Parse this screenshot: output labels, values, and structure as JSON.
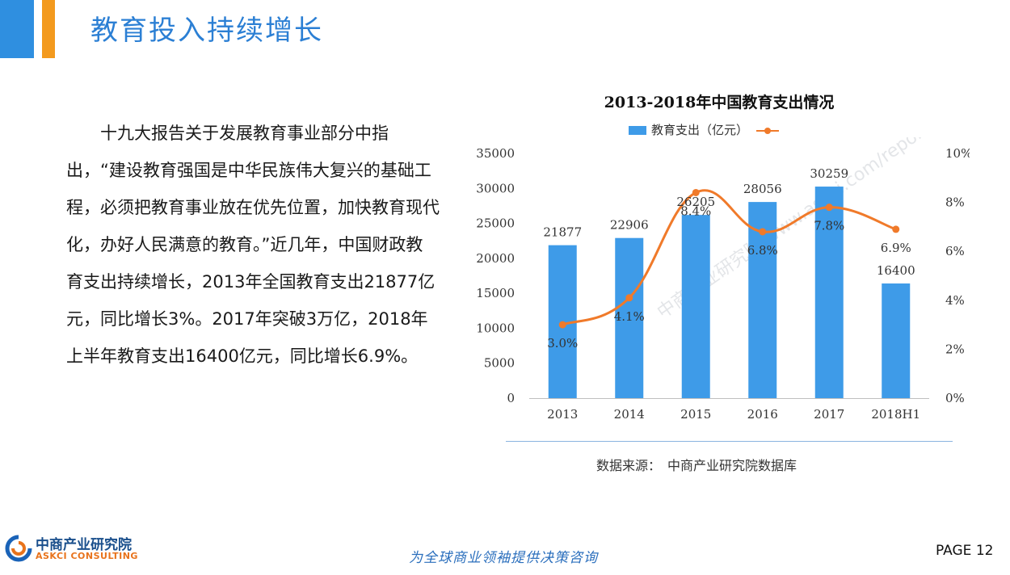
{
  "header": {
    "title": "教育投入持续增长"
  },
  "body": {
    "paragraph": "　　十九大报告关于发展教育事业部分中指出，“建设教育强国是中华民族伟大复兴的基础工程，必须把教育事业放在优先位置，加快教育现代化，办好人民满意的教育。”近几年，中国财政教育支出持续增长，2013年全国教育支出21877亿元，同比增长3%。2017年突破3万亿，2018年上半年教育支出16400亿元，同比增长6.9%。"
  },
  "chart_data": {
    "type": "bar",
    "title": "2013-2018年中国教育支出情况",
    "categories": [
      "2013",
      "2014",
      "2015",
      "2016",
      "2017",
      "2018H1"
    ],
    "series": [
      {
        "name": "教育支出（亿元）",
        "type": "bar",
        "axis": "left",
        "color": "#3e9be8",
        "values": [
          21877,
          22906,
          26205,
          28056,
          30259,
          16400
        ],
        "labels": [
          "21877",
          "22906",
          "26205",
          "28056",
          "30259",
          "16400"
        ]
      },
      {
        "name": "",
        "type": "line",
        "axis": "right",
        "color": "#f07a2a",
        "values": [
          3.0,
          4.1,
          8.4,
          6.8,
          7.8,
          6.9
        ],
        "labels": [
          "3.0%",
          "4.1%",
          "8.4%",
          "6.8%",
          "7.8%",
          "6.9%"
        ]
      }
    ],
    "ylim_left": [
      0,
      35000
    ],
    "yticks_left": [
      "0",
      "5000",
      "10000",
      "15000",
      "20000",
      "25000",
      "30000",
      "35000"
    ],
    "ylim_right": [
      0,
      10
    ],
    "yticks_right": [
      "0%",
      "2%",
      "4%",
      "6%",
      "8%",
      "10%"
    ],
    "legend": "top",
    "grid": false
  },
  "source": "数据来源：　中商产业研究院数据库",
  "footer": {
    "logo_cn": "中商产业研究院",
    "logo_en": "ASKCI CONSULTING",
    "watermark": "中商产业研究院 www.askci.com/reports/",
    "slogan": "为全球商业领袖提供决策咨询",
    "page": "PAGE 12"
  },
  "colors": {
    "brand_blue": "#2f8fe0",
    "brand_orange": "#f39a1e",
    "title_blue": "#2b7fd4"
  }
}
